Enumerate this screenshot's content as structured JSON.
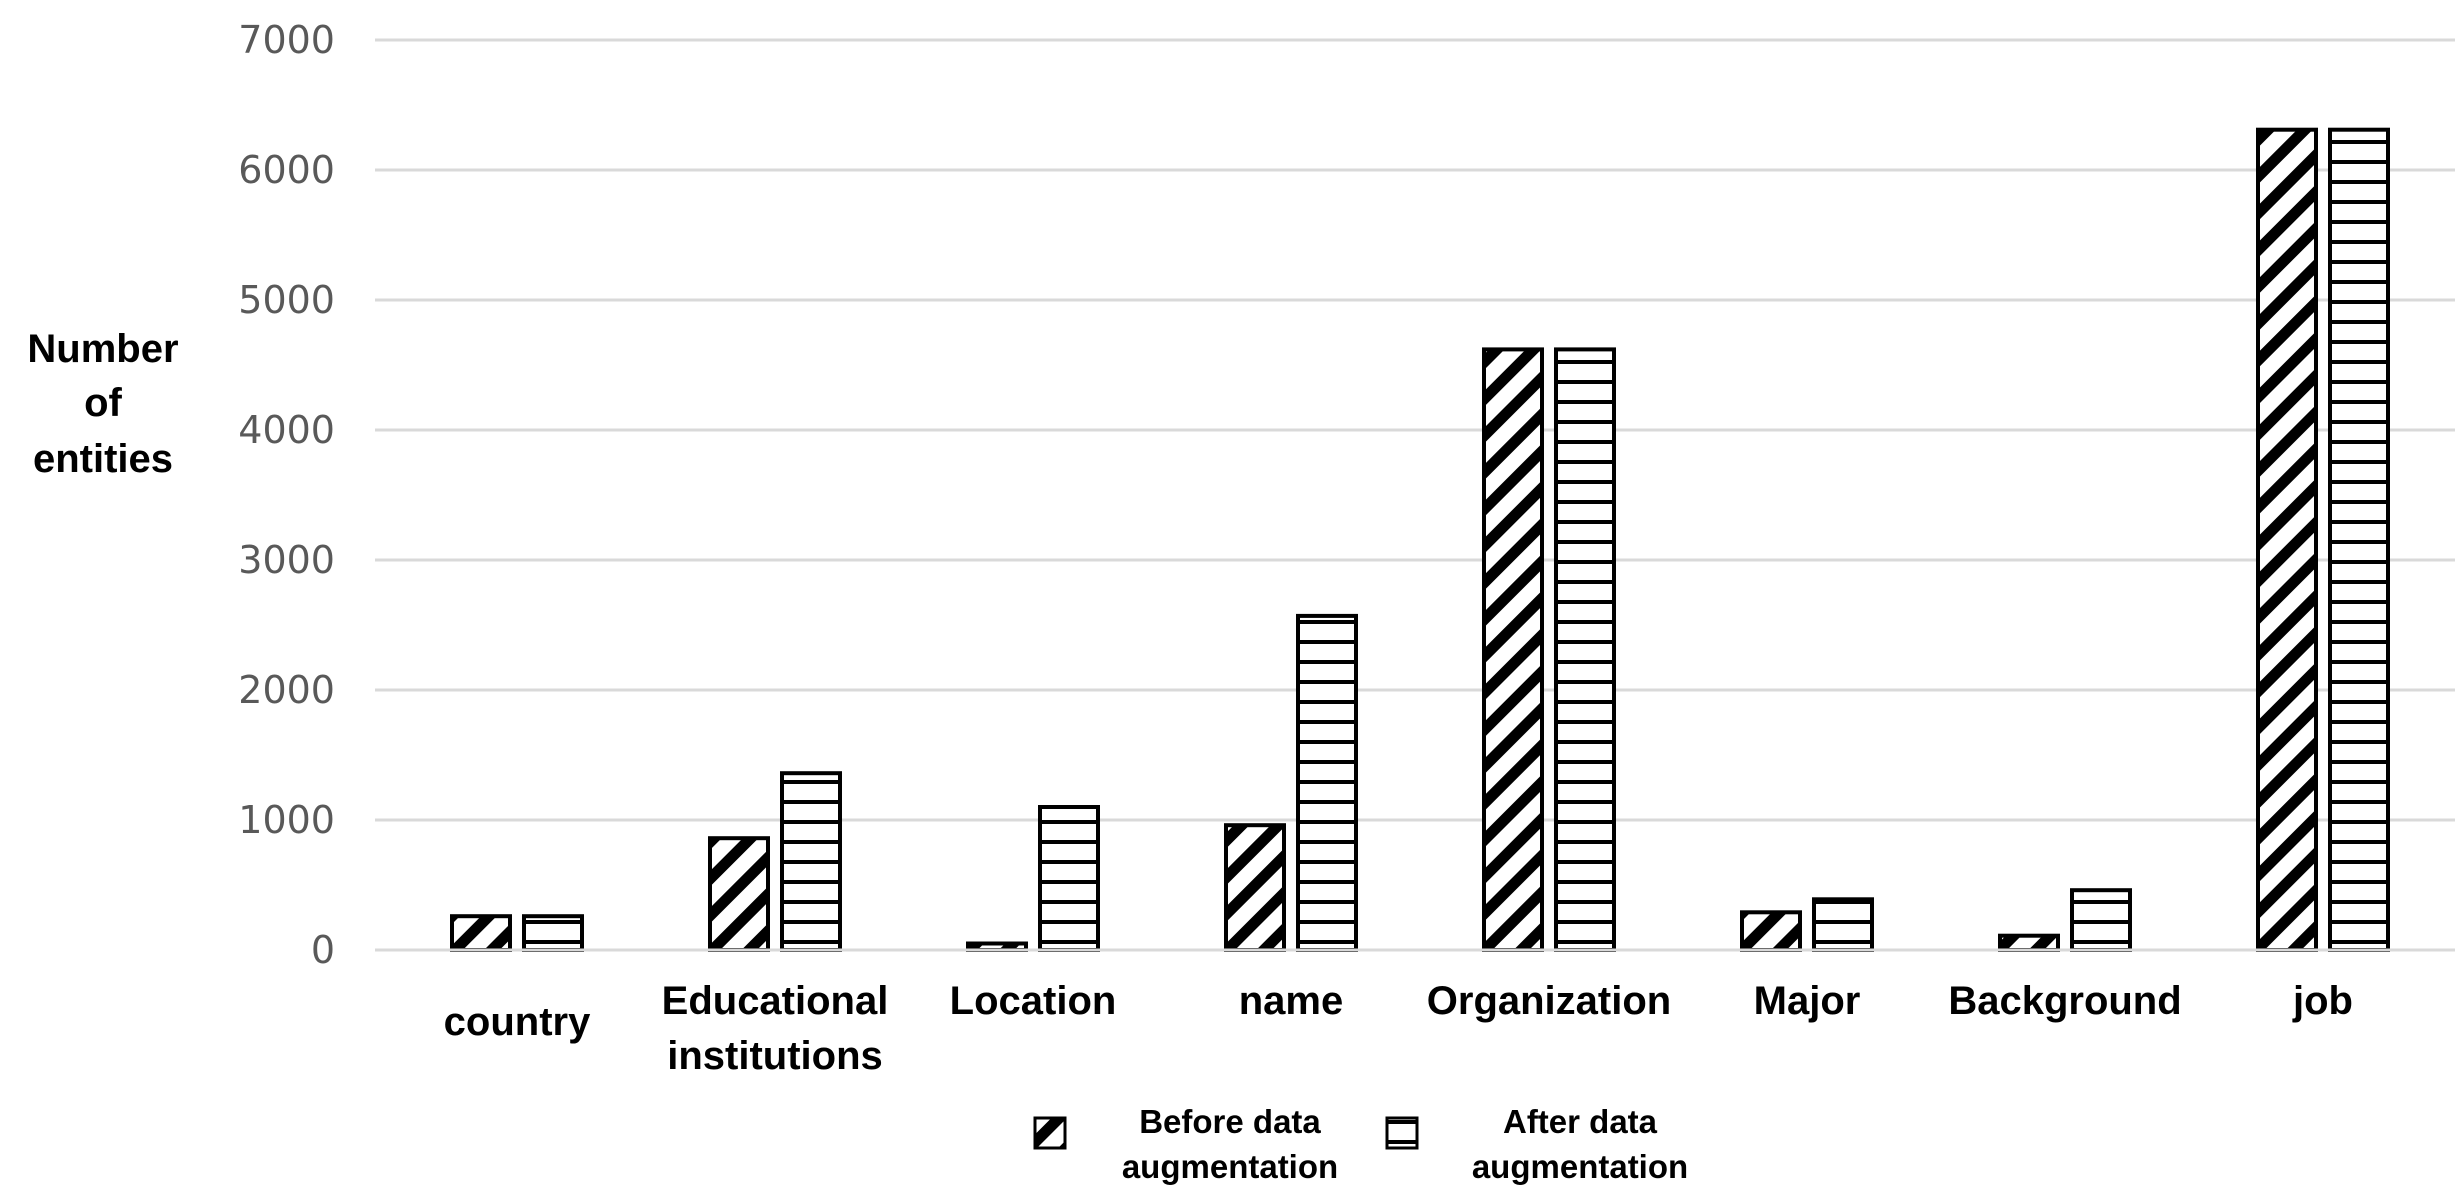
{
  "chart_data": {
    "type": "bar",
    "title": "",
    "ylabel": "Number of entities",
    "xlabel": "",
    "ylim": [
      0,
      7000
    ],
    "yticks": [
      0,
      1000,
      2000,
      3000,
      4000,
      5000,
      6000,
      7000
    ],
    "grid": true,
    "legend_position": "bottom",
    "categories": [
      "country",
      "Educational institutions",
      "Location",
      "name",
      "Organization",
      "Major",
      "Background",
      "job"
    ],
    "series": [
      {
        "name": "Before data augmentation",
        "pattern": "diagonal-hatch",
        "values": [
          260,
          860,
          50,
          960,
          4620,
          290,
          110,
          6310
        ]
      },
      {
        "name": "After data augmentation",
        "pattern": "horizontal-hatch",
        "values": [
          260,
          1360,
          1100,
          2570,
          4620,
          390,
          460,
          6310
        ]
      }
    ],
    "colors": {
      "bar_stroke": "#000000",
      "bar_fill": "#ffffff",
      "grid": "#d9d9d9",
      "tick_text": "#595959",
      "label_text": "#000000"
    }
  }
}
